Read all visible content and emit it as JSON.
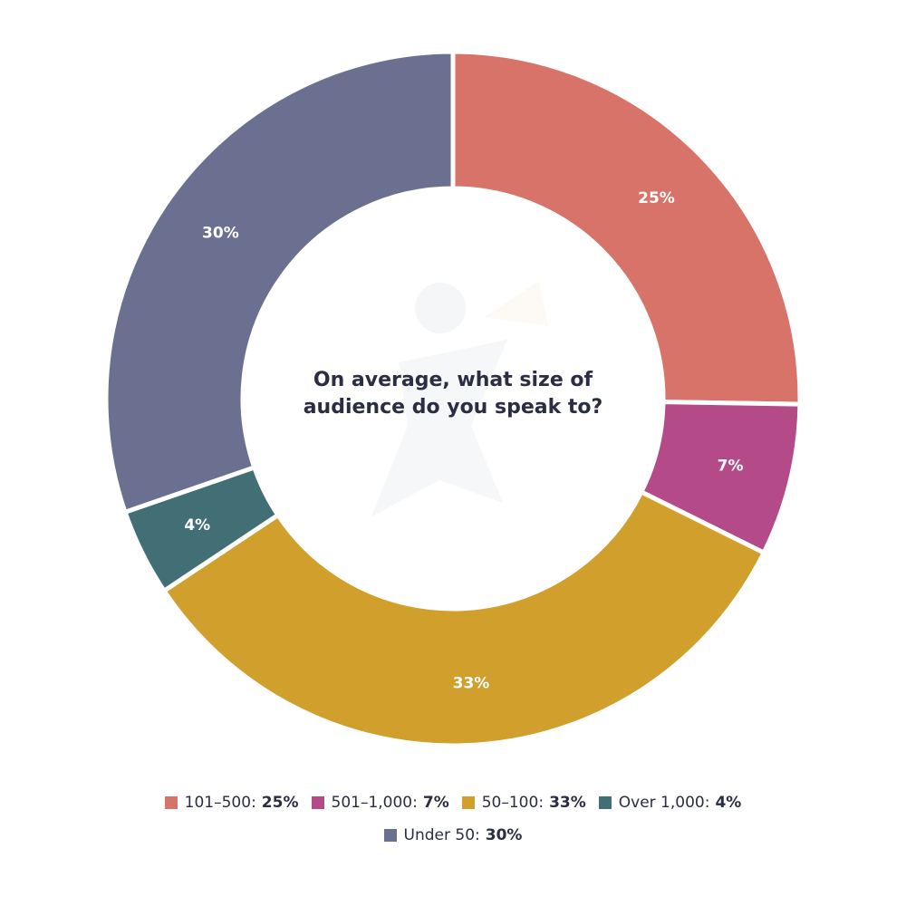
{
  "chart_data": {
    "type": "pie",
    "title_lines": [
      "On average, what size of",
      "audience do you speak to?"
    ],
    "slices": [
      {
        "label": "101–500",
        "value": 25,
        "display": "25%",
        "color": "#d77369"
      },
      {
        "label": "501–1,000",
        "value": 7,
        "display": "7%",
        "color": "#b44a87"
      },
      {
        "label": "50–100",
        "value": 33,
        "display": "33%",
        "color": "#d19f2b"
      },
      {
        "label": "Over 1,000",
        "value": 4,
        "display": "4%",
        "color": "#426f76"
      },
      {
        "label": "Under 50",
        "value": 30,
        "display": "30%",
        "color": "#6c7090"
      }
    ],
    "legend_placement": "bottom"
  }
}
